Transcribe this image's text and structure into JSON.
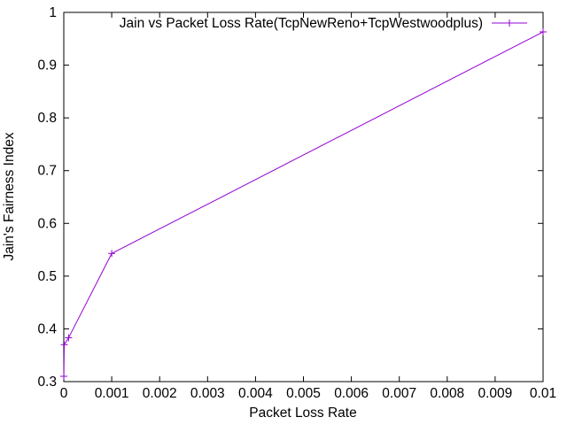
{
  "chart_data": {
    "type": "line",
    "title": "",
    "xlabel": "Packet Loss Rate",
    "ylabel": "Jain's Fairness Index",
    "xlim": [
      0,
      0.01
    ],
    "ylim": [
      0.3,
      1.0
    ],
    "x_ticks": [
      0,
      0.001,
      0.002,
      0.003,
      0.004,
      0.005,
      0.006,
      0.007,
      0.008,
      0.009,
      0.01
    ],
    "x_tick_labels": [
      "0",
      "0.001",
      "0.002",
      "0.003",
      "0.004",
      "0.005",
      "0.006",
      "0.007",
      "0.008",
      "0.009",
      "0.01"
    ],
    "y_ticks": [
      0.3,
      0.4,
      0.5,
      0.6,
      0.7,
      0.8,
      0.9,
      1.0
    ],
    "y_tick_labels": [
      "0.3",
      "0.4",
      "0.5",
      "0.6",
      "0.7",
      "0.8",
      "0.9",
      "1"
    ],
    "grid": false,
    "legend_position": "top-right",
    "series": [
      {
        "name": "Jain vs Packet Loss Rate(TcpNewReno+TcpWestwoodplus)",
        "color": "#9400d3",
        "marker": "plus",
        "x": [
          1e-06,
          1e-05,
          0.0001,
          0.001,
          0.01
        ],
        "y": [
          0.31,
          0.37,
          0.383,
          0.543,
          0.963
        ]
      }
    ]
  }
}
